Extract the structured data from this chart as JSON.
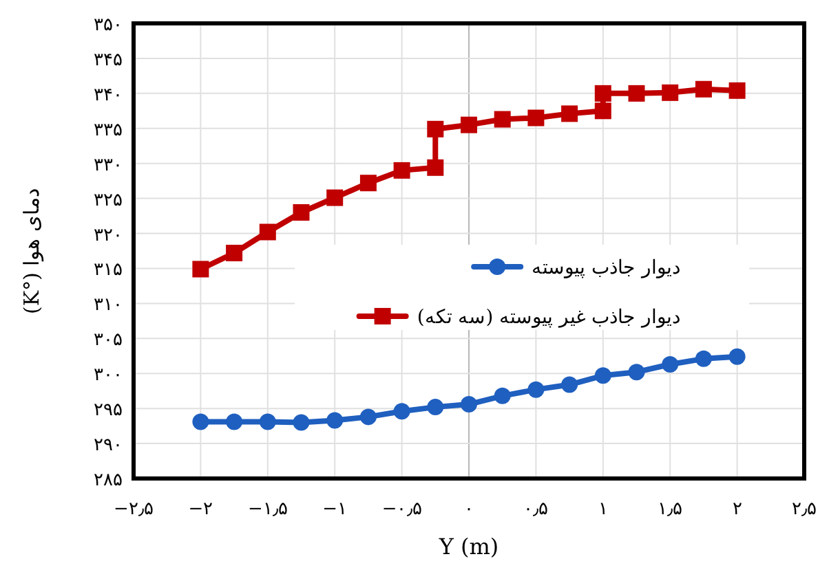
{
  "chart_data": {
    "type": "line",
    "xlabel": "Y (m)",
    "ylabel": "دمای هوا (°K)",
    "xlim": [
      -2.5,
      2.5
    ],
    "xticks": [
      {
        "value": -2.5,
        "label": "−۲٫۵"
      },
      {
        "value": -2,
        "label": "−۲"
      },
      {
        "value": -1.5,
        "label": "−۱٫۵"
      },
      {
        "value": -1,
        "label": "−۱"
      },
      {
        "value": -0.5,
        "label": "−۰٫۵"
      },
      {
        "value": 0,
        "label": "۰"
      },
      {
        "value": 0.5,
        "label": "۰٫۵"
      },
      {
        "value": 1,
        "label": "۱"
      },
      {
        "value": 1.5,
        "label": "۱٫۵"
      },
      {
        "value": 2,
        "label": "۲"
      },
      {
        "value": 2.5,
        "label": "۲٫۵"
      }
    ],
    "ylim": [
      285,
      350
    ],
    "yticks": [
      {
        "value": 285,
        "label": "۲۸۵"
      },
      {
        "value": 290,
        "label": "۲۹۰"
      },
      {
        "value": 295,
        "label": "۲۹۵"
      },
      {
        "value": 300,
        "label": "۳۰۰"
      },
      {
        "value": 305,
        "label": "۳۰۵"
      },
      {
        "value": 310,
        "label": "۳۱۰"
      },
      {
        "value": 315,
        "label": "۳۱۵"
      },
      {
        "value": 320,
        "label": "۳۲۰"
      },
      {
        "value": 325,
        "label": "۳۲۵"
      },
      {
        "value": 330,
        "label": "۳۳۰"
      },
      {
        "value": 335,
        "label": "۳۳۵"
      },
      {
        "value": 340,
        "label": "۳۴۰"
      },
      {
        "value": 345,
        "label": "۳۴۵"
      },
      {
        "value": 350,
        "label": "۳۵۰"
      }
    ],
    "grid": true,
    "legend": "right",
    "line_style": "solid",
    "series": [
      {
        "name": "دیوار جاذب پیوسته",
        "color": "#1f5fbf",
        "marker": "circle",
        "x": [
          -2,
          -1.75,
          -1.5,
          -1.25,
          -1,
          -0.75,
          -0.5,
          -0.25,
          0,
          0.25,
          0.5,
          0.75,
          1,
          1.25,
          1.5,
          1.75,
          2
        ],
        "values": [
          293.1,
          293.1,
          293.1,
          293.0,
          293.3,
          293.8,
          294.6,
          295.2,
          295.6,
          296.8,
          297.7,
          298.4,
          299.7,
          300.2,
          301.3,
          302.1,
          302.4
        ]
      },
      {
        "name": "دیوار جاذب غیر پیوسته (سه تکه)",
        "color": "#c00000",
        "marker": "square",
        "x": [
          -2,
          -1.75,
          -1.5,
          -1.25,
          -1,
          -0.75,
          -0.5,
          -0.25,
          -0.25,
          0,
          0.25,
          0.5,
          0.75,
          1,
          1,
          1.25,
          1.5,
          1.75,
          2
        ],
        "values": [
          314.9,
          317.2,
          320.2,
          323.0,
          325.1,
          327.2,
          329.0,
          329.4,
          334.9,
          335.5,
          336.3,
          336.5,
          337.1,
          337.5,
          340.0,
          340.0,
          340.1,
          340.6,
          340.4
        ]
      }
    ]
  }
}
